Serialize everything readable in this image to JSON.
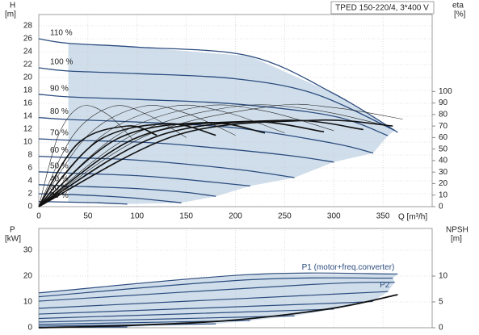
{
  "chart_data": [
    {
      "type": "line",
      "title": "TPED 150-220/4, 3*400 V",
      "ylabel": [
        "H",
        "[m]"
      ],
      "y2label": [
        "eta",
        "[%]"
      ],
      "xlabel": "Q [m³/h]",
      "xlim": [
        0,
        400
      ],
      "xticks": [
        0,
        50,
        100,
        150,
        200,
        250,
        300,
        350
      ],
      "ylim": [
        0,
        28
      ],
      "yticks": [
        0,
        2,
        4,
        6,
        8,
        10,
        12,
        14,
        16,
        18,
        20,
        22,
        24,
        26,
        28
      ],
      "y2lim": [
        0,
        157
      ],
      "y2ticks": [
        0,
        10,
        20,
        30,
        40,
        50,
        60,
        70,
        80,
        90,
        100
      ],
      "grid": true,
      "shade_color": "#c8d8e8",
      "series": [
        {
          "name": "110 %",
          "color": "#2b4c7e",
          "linewidth": 1.3,
          "x": [
            0,
            30,
            100,
            215,
            300,
            365
          ],
          "values": [
            26,
            25.3,
            24.7,
            23.3,
            17.5,
            11.5
          ]
        },
        {
          "name": "100 %",
          "color": "#2b4c7e",
          "linewidth": 1.3,
          "x": [
            0,
            30,
            100,
            200,
            280,
            362
          ],
          "values": [
            21.5,
            21,
            20.6,
            19.8,
            17.5,
            11.8
          ]
        },
        {
          "name": "90 %",
          "color": "#2b4c7e",
          "linewidth": 1.3,
          "x": [
            0,
            30,
            100,
            200,
            300,
            355
          ],
          "values": [
            17.4,
            17,
            16.6,
            15.9,
            14,
            11
          ]
        },
        {
          "name": "80 %",
          "color": "#2b4c7e",
          "linewidth": 1.3,
          "x": [
            0,
            30,
            100,
            200,
            300,
            340
          ],
          "values": [
            13.8,
            13.5,
            13.1,
            12.2,
            9.8,
            8.3
          ]
        },
        {
          "name": "70 %",
          "color": "#2b4c7e",
          "linewidth": 1.3,
          "x": [
            0,
            30,
            100,
            150,
            250,
            300
          ],
          "values": [
            10.5,
            10.3,
            10,
            9.5,
            8,
            6.9
          ]
        },
        {
          "name": "60 %",
          "color": "#2b4c7e",
          "linewidth": 1.3,
          "x": [
            0,
            30,
            100,
            200,
            260
          ],
          "values": [
            7.8,
            7.6,
            7.2,
            5.8,
            4.5
          ]
        },
        {
          "name": "50 %",
          "color": "#2b4c7e",
          "linewidth": 1.3,
          "x": [
            0,
            30,
            100,
            150,
            215
          ],
          "values": [
            5.4,
            5.2,
            4.8,
            4.2,
            3.2
          ]
        },
        {
          "name": "40 %",
          "color": "#2b4c7e",
          "linewidth": 1.3,
          "x": [
            0,
            30,
            100,
            150,
            180
          ],
          "values": [
            3.4,
            3.2,
            2.8,
            2.2,
            1.6
          ]
        },
        {
          "name": "30 %",
          "color": "#2b4c7e",
          "linewidth": 1.3,
          "x": [
            0,
            30,
            70,
            100,
            145
          ],
          "values": [
            2,
            1.9,
            1.6,
            1.3,
            0.6
          ]
        },
        {
          "name": "20 %",
          "color": "#2b4c7e",
          "linewidth": 1.3,
          "x": [
            0,
            30,
            60,
            90
          ],
          "values": [
            0.8,
            0.7,
            0.6,
            0.4
          ]
        },
        {
          "axis": "y2",
          "color": "#222222",
          "linewidth": 0.6,
          "x": [
            0,
            20,
            43,
            70,
            96
          ],
          "values": [
            0,
            62,
            87,
            80,
            58
          ]
        },
        {
          "axis": "y2",
          "color": "#222222",
          "linewidth": 0.6,
          "x": [
            0,
            35,
            75,
            110,
            150
          ],
          "values": [
            0,
            62,
            87,
            80,
            60
          ]
        },
        {
          "axis": "y2",
          "color": "#222222",
          "linewidth": 0.6,
          "x": [
            0,
            50,
            105,
            150,
            200
          ],
          "values": [
            0,
            62,
            87,
            81,
            62
          ]
        },
        {
          "axis": "y2",
          "color": "#222222",
          "linewidth": 0.6,
          "x": [
            0,
            65,
            135,
            190,
            250
          ],
          "values": [
            0,
            62,
            87,
            82,
            64
          ]
        },
        {
          "axis": "y2",
          "color": "#222222",
          "linewidth": 0.6,
          "x": [
            0,
            80,
            165,
            230,
            300
          ],
          "values": [
            0,
            62,
            87,
            83,
            66
          ]
        },
        {
          "axis": "y2",
          "color": "#222222",
          "linewidth": 0.6,
          "x": [
            0,
            95,
            200,
            280,
            355
          ],
          "values": [
            0,
            62,
            87,
            84,
            70
          ]
        },
        {
          "axis": "y2",
          "color": "#222222",
          "linewidth": 0.6,
          "x": [
            0,
            110,
            235,
            300,
            370
          ],
          "values": [
            0,
            62,
            87,
            86,
            76
          ]
        },
        {
          "axis": "y2",
          "color": "#111111",
          "linewidth": 1.6,
          "x": [
            0,
            40,
            90,
            120
          ],
          "values": [
            0,
            55,
            70,
            62
          ]
        },
        {
          "axis": "y2",
          "color": "#111111",
          "linewidth": 1.6,
          "x": [
            0,
            60,
            130,
            180
          ],
          "values": [
            0,
            57,
            72,
            62
          ]
        },
        {
          "axis": "y2",
          "color": "#111111",
          "linewidth": 1.6,
          "x": [
            0,
            80,
            170,
            230
          ],
          "values": [
            0,
            59,
            73,
            64
          ]
        },
        {
          "axis": "y2",
          "color": "#111111",
          "linewidth": 1.6,
          "x": [
            0,
            100,
            210,
            290
          ],
          "values": [
            0,
            60,
            74,
            65
          ]
        },
        {
          "axis": "y2",
          "color": "#111111",
          "linewidth": 1.6,
          "x": [
            0,
            120,
            250,
            330
          ],
          "values": [
            0,
            61,
            75,
            67
          ]
        },
        {
          "axis": "y2",
          "color": "#111111",
          "linewidth": 1.6,
          "x": [
            0,
            140,
            280,
            360
          ],
          "values": [
            0,
            62,
            75,
            70
          ]
        }
      ]
    },
    {
      "type": "line",
      "ylabel": [
        "P",
        "[kW]"
      ],
      "y2label": [
        "NPSH",
        "[m]"
      ],
      "xlim": [
        0,
        400
      ],
      "xticks": [
        0,
        50,
        100,
        150,
        200,
        250,
        300,
        350
      ],
      "ylim": [
        0,
        30
      ],
      "yticks": [
        0,
        10,
        20,
        30
      ],
      "y2lim": [
        0,
        15
      ],
      "y2ticks": [
        0,
        5,
        10
      ],
      "grid": true,
      "shade_color": "#c8d8e8",
      "series": [
        {
          "name": "P1 (motor+freq.converter)",
          "color": "#2b4c7e",
          "linewidth": 1.2,
          "x": [
            0,
            215,
            365
          ],
          "values": [
            13.5,
            20.6,
            20.8
          ]
        },
        {
          "name": "P2",
          "color": "#2b4c7e",
          "linewidth": 1.2,
          "x": [
            0,
            215,
            360
          ],
          "values": [
            12,
            18.6,
            19.2
          ]
        },
        {
          "color": "#2b4c7e",
          "linewidth": 1.2,
          "x": [
            0,
            280,
            362
          ],
          "values": [
            10.3,
            16.8,
            17.6
          ]
        },
        {
          "color": "#2b4c7e",
          "linewidth": 1.2,
          "x": [
            0,
            300,
            355
          ],
          "values": [
            7.5,
            13,
            14
          ]
        },
        {
          "color": "#2b4c7e",
          "linewidth": 1.2,
          "x": [
            0,
            300,
            340
          ],
          "values": [
            5.3,
            9.5,
            10.3
          ]
        },
        {
          "color": "#2b4c7e",
          "linewidth": 1.2,
          "x": [
            0,
            300
          ],
          "values": [
            3.6,
            7.2
          ]
        },
        {
          "color": "#2b4c7e",
          "linewidth": 1.2,
          "x": [
            0,
            260
          ],
          "values": [
            2.2,
            4.6
          ]
        },
        {
          "color": "#2b4c7e",
          "linewidth": 1.2,
          "x": [
            0,
            215
          ],
          "values": [
            1.3,
            2.8
          ]
        },
        {
          "color": "#2b4c7e",
          "linewidth": 1.2,
          "x": [
            0,
            180
          ],
          "values": [
            0.6,
            1.5
          ]
        },
        {
          "color": "#2b4c7e",
          "linewidth": 1.2,
          "x": [
            0,
            90
          ],
          "values": [
            0.1,
            0.3
          ]
        },
        {
          "axis": "y2",
          "color": "#111111",
          "linewidth": 1.8,
          "x": [
            0,
            100,
            200,
            300,
            365
          ],
          "values": [
            0,
            0.5,
            1.5,
            3.8,
            6.4
          ]
        }
      ]
    }
  ]
}
